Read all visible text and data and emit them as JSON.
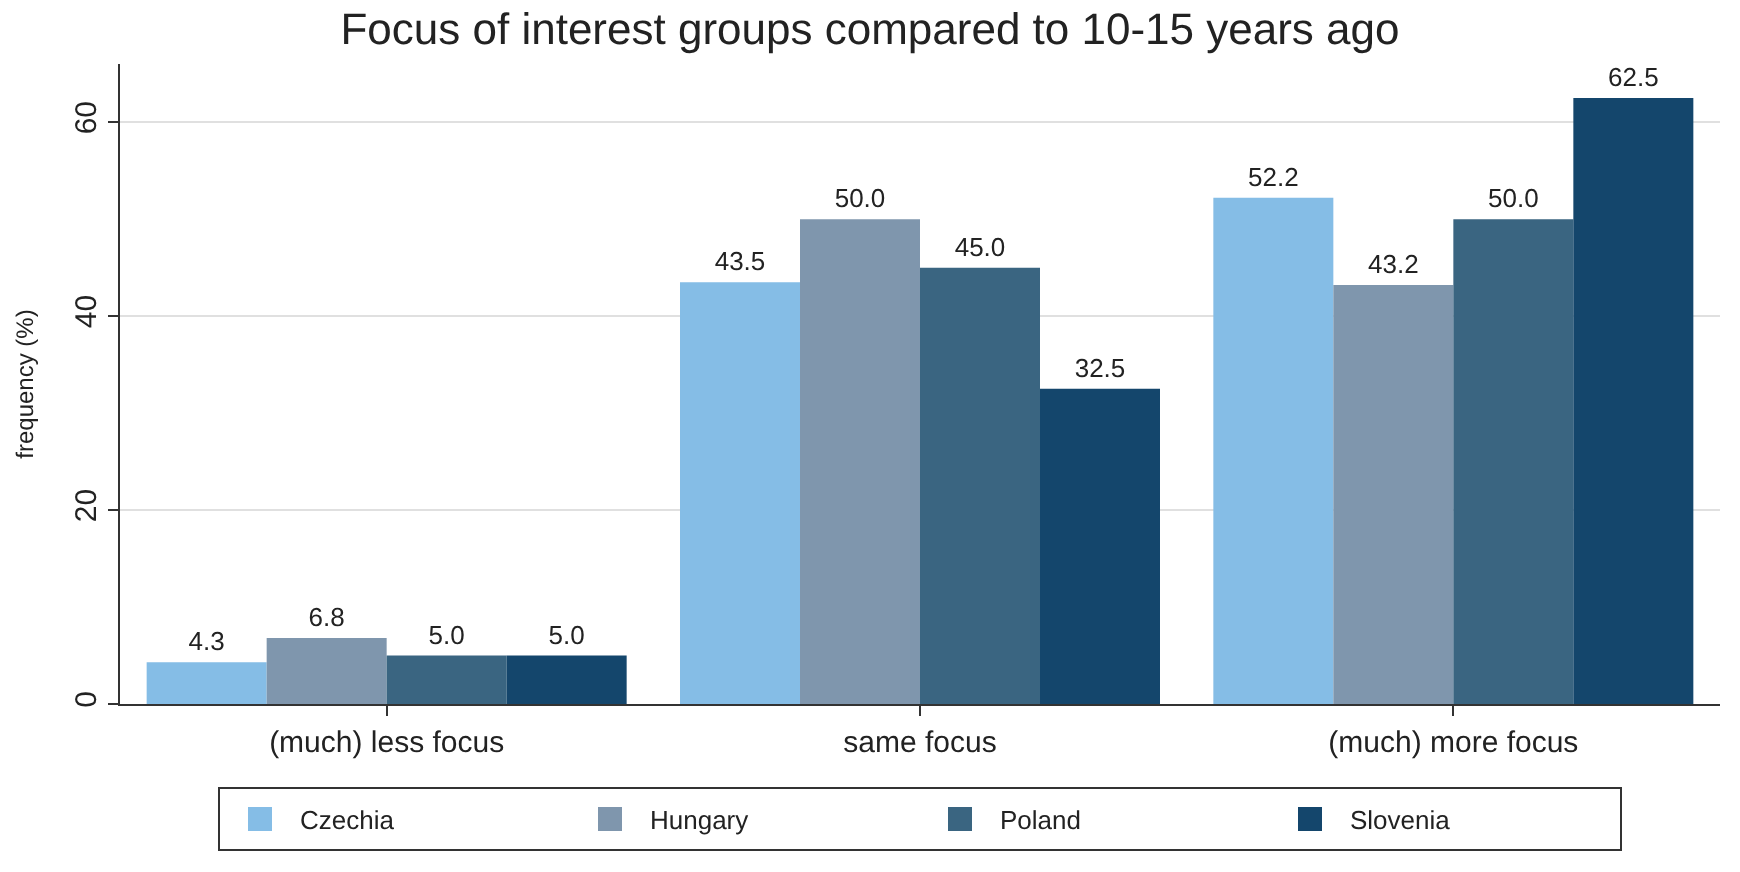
{
  "chart_data": {
    "type": "bar",
    "title": "Focus of interest groups compared to 10-15 years ago",
    "ylabel": "frequency (%)",
    "categories": [
      "(much) less focus",
      "same focus",
      "(much) more focus"
    ],
    "series": [
      {
        "name": "Czechia",
        "color": "#85bde6",
        "values": [
          4.3,
          43.5,
          52.2
        ],
        "value_labels": [
          "4.3",
          "43.5",
          "52.2"
        ]
      },
      {
        "name": "Hungary",
        "color": "#7f96ad",
        "values": [
          6.8,
          50.0,
          43.2
        ],
        "value_labels": [
          "6.8",
          "50.0",
          "43.2"
        ]
      },
      {
        "name": "Poland",
        "color": "#3a6581",
        "values": [
          5.0,
          45.0,
          50.0
        ],
        "value_labels": [
          "5.0",
          "45.0",
          "50.0"
        ]
      },
      {
        "name": "Slovenia",
        "color": "#14466c",
        "values": [
          5.0,
          32.5,
          62.5
        ],
        "value_labels": [
          "5.0",
          "32.5",
          "62.5"
        ]
      }
    ],
    "ylim": [
      0,
      66
    ],
    "yticks": [
      0,
      20,
      40,
      60
    ],
    "grid": "y",
    "legend": "bottom"
  }
}
